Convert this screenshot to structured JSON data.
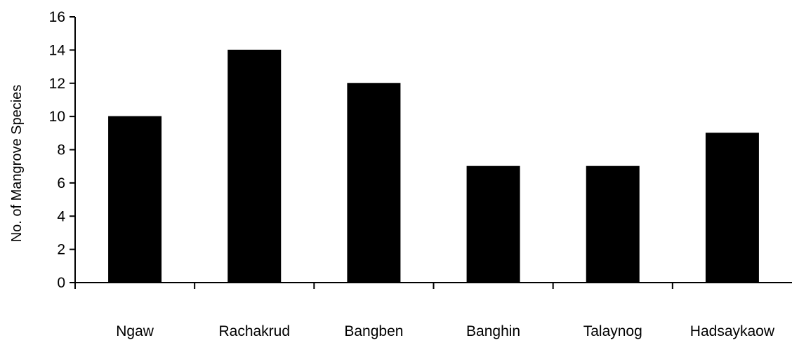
{
  "chart_data": {
    "type": "bar",
    "categories": [
      "Ngaw",
      "Rachakrud",
      "Bangben",
      "Banghin",
      "Talaynog",
      "Hadsaykaow"
    ],
    "values": [
      10,
      14,
      12,
      7,
      7,
      9
    ],
    "ylabel": "No. of Mangrove Species",
    "xlabel": "",
    "ylim": [
      0,
      16
    ],
    "yticks": [
      "0",
      "2",
      "4",
      "6",
      "8",
      "10",
      "12",
      "14",
      "16"
    ],
    "bar_color": "#000000",
    "grid": false,
    "legend": "none"
  }
}
